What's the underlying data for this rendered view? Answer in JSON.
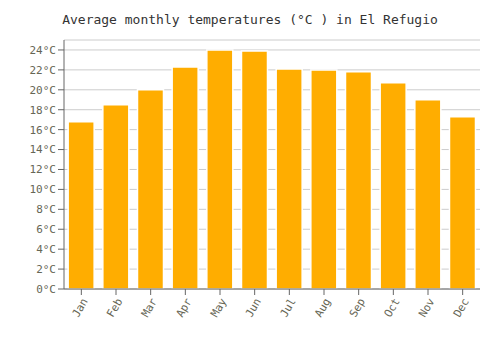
{
  "chart_data": {
    "type": "bar",
    "title": "Average monthly temperatures (°C ) in El Refugio",
    "categories": [
      "Jan",
      "Feb",
      "Mar",
      "Apr",
      "May",
      "Jun",
      "Jul",
      "Aug",
      "Sep",
      "Oct",
      "Nov",
      "Dec"
    ],
    "values": [
      16.8,
      18.5,
      20.0,
      22.3,
      24.0,
      23.9,
      22.1,
      22.0,
      21.8,
      20.7,
      19.0,
      17.3
    ],
    "color": "#FFAD00",
    "ylim": [
      0,
      25
    ],
    "yticks": [
      {
        "value": 0,
        "label": "0°C"
      },
      {
        "value": 2,
        "label": "2°C"
      },
      {
        "value": 4,
        "label": "4°C"
      },
      {
        "value": 6,
        "label": "6°C"
      },
      {
        "value": 8,
        "label": "8°C"
      },
      {
        "value": 10,
        "label": "10°C"
      },
      {
        "value": 12,
        "label": "12°C"
      },
      {
        "value": 14,
        "label": "14°C"
      },
      {
        "value": 16,
        "label": "16°C"
      },
      {
        "value": 18,
        "label": "18°C"
      },
      {
        "value": 20,
        "label": "20°C"
      },
      {
        "value": 22,
        "label": "22°C"
      },
      {
        "value": 24,
        "label": "24°C"
      }
    ],
    "grid": true
  }
}
